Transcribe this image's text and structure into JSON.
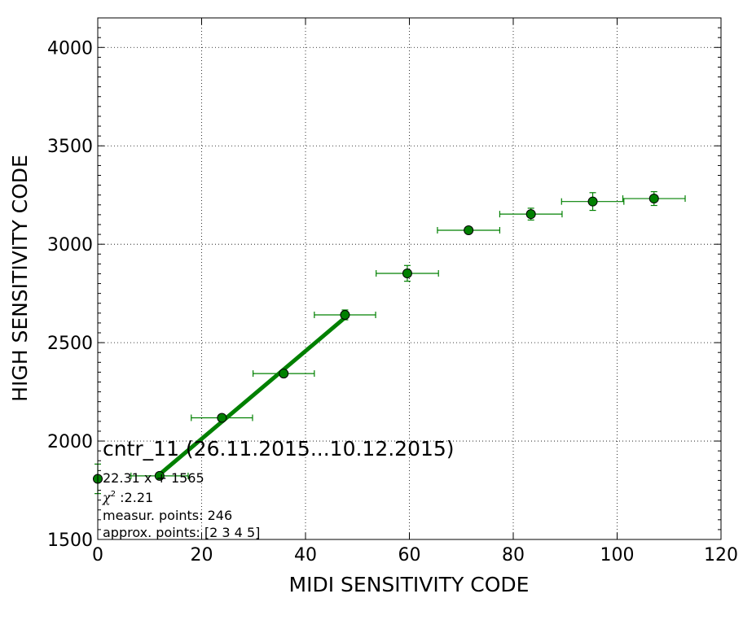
{
  "chart_data": {
    "type": "scatter",
    "xlabel": "MIDI SENSITIVITY CODE",
    "ylabel": "HIGH SENSITIVITY CODE",
    "xlim": [
      0,
      120
    ],
    "ylim": [
      1500,
      4150
    ],
    "xticks": [
      0,
      20,
      40,
      60,
      80,
      100,
      120
    ],
    "yticks": [
      1500,
      2000,
      2500,
      3000,
      3500,
      4000
    ],
    "grid": true,
    "marker_color": "#008000",
    "line_color": "#008000",
    "points": [
      {
        "x": 0,
        "y": 1808,
        "xerr": 0,
        "yerr": 75
      },
      {
        "x": 11.9,
        "y": 1823,
        "xerr": 5.5,
        "yerr": 12
      },
      {
        "x": 23.9,
        "y": 2118,
        "xerr": 5.9,
        "yerr": 12
      },
      {
        "x": 35.8,
        "y": 2343,
        "xerr": 5.9,
        "yerr": 12
      },
      {
        "x": 47.6,
        "y": 2641,
        "xerr": 5.9,
        "yerr": 25
      },
      {
        "x": 59.6,
        "y": 2852,
        "xerr": 6.0,
        "yerr": 40
      },
      {
        "x": 71.4,
        "y": 3071,
        "xerr": 6.0,
        "yerr": 12
      },
      {
        "x": 83.4,
        "y": 3153,
        "xerr": 6.0,
        "yerr": 30
      },
      {
        "x": 95.3,
        "y": 3217,
        "xerr": 6.0,
        "yerr": 45
      },
      {
        "x": 107.1,
        "y": 3232,
        "xerr": 6.0,
        "yerr": 35
      }
    ],
    "fit_line": {
      "slope": 22.31,
      "intercept": 1565,
      "x_range": [
        11.9,
        47.6
      ]
    },
    "annotations": {
      "title": "cntr_11 (26.11.2015...10.12.2015)",
      "equation": "22.31 x + 1565",
      "chi_symbol": "χ",
      "chi_sup": "2",
      "chi_value": " :2.21",
      "measur_points": "measur. points: 246",
      "approx_points": "approx. points: [2 3 4 5]"
    }
  }
}
